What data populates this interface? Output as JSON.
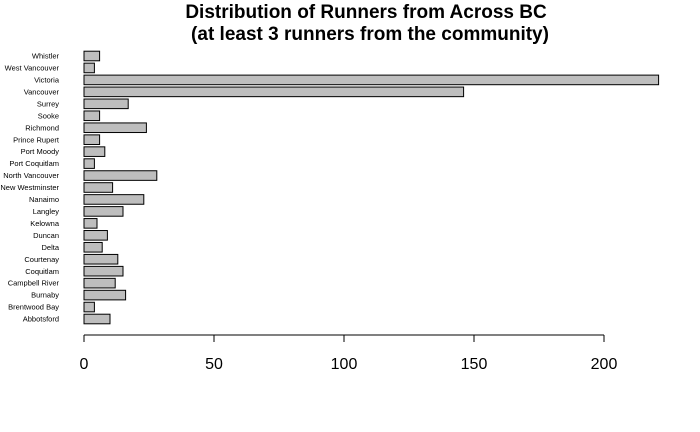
{
  "chart_data": {
    "type": "bar",
    "orientation": "horizontal",
    "title": [
      "Distribution of Runners from Across BC",
      "(at least 3 runners from the community)"
    ],
    "categories": [
      "Whistler",
      "West Vancouver",
      "Victoria",
      "Vancouver",
      "Surrey",
      "Sooke",
      "Richmond",
      "Prince Rupert",
      "Port Moody",
      "Port Coquitlam",
      "North Vancouver",
      "New Westminster",
      "Nanaimo",
      "Langley",
      "Kelowna",
      "Duncan",
      "Delta",
      "Courtenay",
      "Coquitlam",
      "Campbell River",
      "Burnaby",
      "Brentwood Bay",
      "Abbotsford"
    ],
    "values": [
      6,
      4,
      221,
      146,
      17,
      6,
      24,
      6,
      8,
      4,
      28,
      11,
      23,
      15,
      5,
      9,
      7,
      13,
      15,
      12,
      16,
      4,
      10
    ],
    "xlim": [
      0,
      200
    ],
    "xticks": [
      0,
      50,
      100,
      150,
      200
    ],
    "bar_color": "#bebebe",
    "bar_edge_color": "#000000",
    "grid": false
  }
}
